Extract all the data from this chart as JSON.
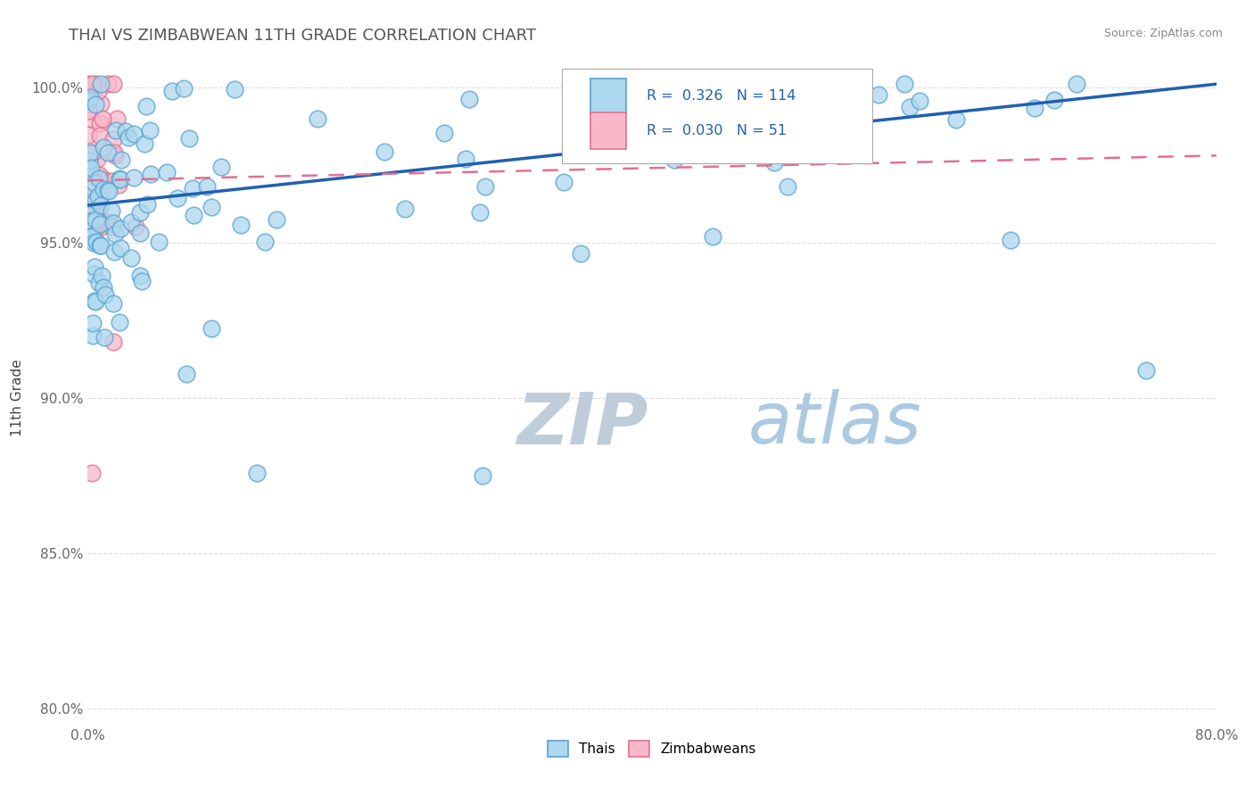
{
  "title": "THAI VS ZIMBABWEAN 11TH GRADE CORRELATION CHART",
  "source_text": "Source: ZipAtlas.com",
  "ylabel": "11th Grade",
  "x_min": 0.0,
  "x_max": 0.8,
  "y_min": 0.795,
  "y_max": 1.005,
  "x_tick_pos": [
    0.0,
    0.1,
    0.2,
    0.3,
    0.4,
    0.5,
    0.6,
    0.7,
    0.8
  ],
  "x_tick_labels": [
    "0.0%",
    "",
    "",
    "",
    "",
    "",
    "",
    "",
    "80.0%"
  ],
  "y_tick_pos": [
    0.8,
    0.85,
    0.9,
    0.95,
    1.0
  ],
  "y_tick_labels": [
    "80.0%",
    "85.0%",
    "90.0%",
    "95.0%",
    "100.0%"
  ],
  "thai_color": "#add8f0",
  "thai_edge_color": "#5ba3d0",
  "zimbabwean_color": "#f8b8c8",
  "zimbabwean_edge_color": "#e07090",
  "thai_line_color": "#2060b0",
  "zimbabwean_line_color": "#e07090",
  "thai_R": 0.326,
  "thai_N": 114,
  "zimbabwean_R": 0.03,
  "zimbabwean_N": 51,
  "watermark": "ZIPatlas",
  "watermark_color": "#c8d8e8",
  "legend_label_color": "#2060b0",
  "title_color": "#555555",
  "source_color": "#888888",
  "tick_color": "#666666"
}
